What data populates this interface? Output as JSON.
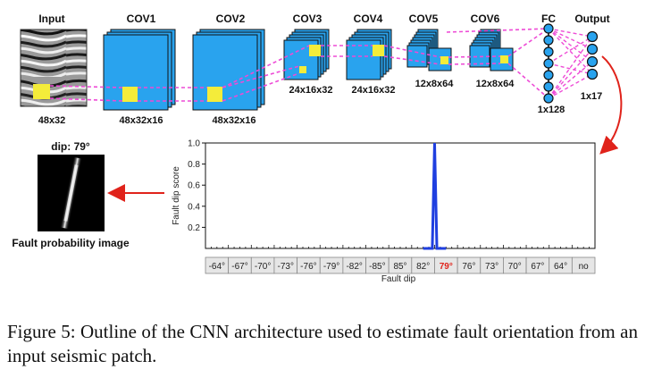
{
  "architecture": {
    "layers": [
      {
        "name": "Input",
        "size": "48x32"
      },
      {
        "name": "COV1",
        "size": "48x32x16"
      },
      {
        "name": "COV2",
        "size": "48x32x16"
      },
      {
        "name": "COV3",
        "size": "24x16x32"
      },
      {
        "name": "COV4",
        "size": "24x16x32"
      },
      {
        "name": "COV5",
        "size": "12x8x64"
      },
      {
        "name": "COV6",
        "size": "12x8x64"
      },
      {
        "name": "FC",
        "size": "1x128"
      },
      {
        "name": "Output",
        "size": "1x17"
      }
    ]
  },
  "fault_image": {
    "title": "dip: 79°",
    "label": "Fault probability image"
  },
  "chart_data": {
    "type": "line",
    "xlabel": "Fault dip",
    "ylabel": "Fault dip score",
    "ylim": [
      0,
      1.0
    ],
    "yticks": [
      0.2,
      0.4,
      0.6,
      0.8,
      1.0
    ],
    "ytick_labels": [
      "0.2",
      "0.4",
      "0.6",
      "0.8",
      "1.0"
    ],
    "categories": [
      "-64°",
      "-67°",
      "-70°",
      "-73°",
      "-76°",
      "-79°",
      "-82°",
      "-85°",
      "85°",
      "82°",
      "79°",
      "76°",
      "73°",
      "70°",
      "67°",
      "64°",
      "no"
    ],
    "highlight_category": "79°",
    "x": [
      9.5,
      9.9,
      10.0,
      10.1,
      10.5
    ],
    "values": [
      0.0,
      0.0,
      1.0,
      0.0,
      0.0
    ],
    "grid": false,
    "line_color": "#1f3fe0",
    "highlight_color": "#e0231b"
  },
  "caption": "Figure 5: Outline of the CNN architecture used to estimate fault orientation from an input seismic patch.",
  "colors": {
    "feature_map": "#29a3ee",
    "patch": "#f4ec3a",
    "connector": "#ee4bd6",
    "node": "#29a3ee",
    "arrow": "#e0231b"
  }
}
